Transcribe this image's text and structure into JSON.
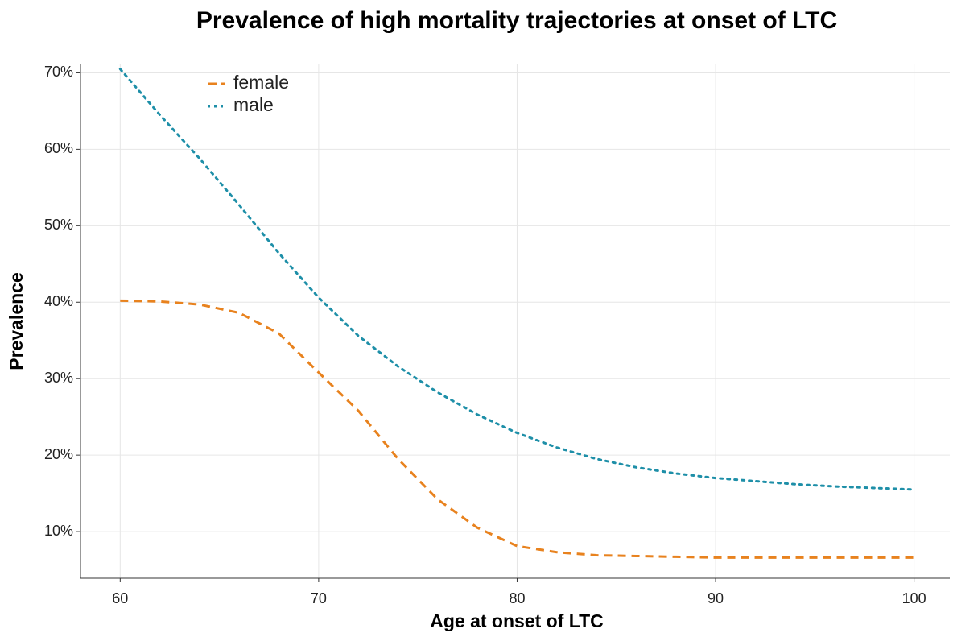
{
  "chart_data": {
    "type": "line",
    "title": "Prevalence of high mortality trajectories at onset of LTC",
    "x_label": "Age at onset of LTC",
    "y_label": "Prevalence",
    "x": [
      60,
      62,
      64,
      66,
      68,
      70,
      72,
      74,
      76,
      78,
      80,
      82,
      84,
      86,
      88,
      90,
      92,
      94,
      96,
      98,
      100
    ],
    "series": [
      {
        "name": "female",
        "color": "#e8821e",
        "style": "dashed",
        "values": [
          40.2,
          40.1,
          39.7,
          38.6,
          35.9,
          30.8,
          25.8,
          19.5,
          14.2,
          10.5,
          8.1,
          7.3,
          6.9,
          6.8,
          6.7,
          6.6,
          6.6,
          6.6,
          6.6,
          6.6,
          6.6
        ]
      },
      {
        "name": "male",
        "color": "#1e8fa8",
        "style": "dotted",
        "values": [
          70.5,
          64.5,
          58.8,
          52.7,
          46.4,
          40.6,
          35.6,
          31.6,
          28.2,
          25.3,
          22.9,
          21.0,
          19.5,
          18.4,
          17.6,
          17.0,
          16.6,
          16.2,
          15.9,
          15.7,
          15.5
        ]
      }
    ],
    "xlim": [
      58,
      101.8
    ],
    "xticks": [
      60,
      70,
      80,
      90,
      100
    ],
    "ylim": [
      3.9,
      71.1
    ],
    "yticks": [
      {
        "value": 10,
        "label": "10%"
      },
      {
        "value": 20,
        "label": "20%"
      },
      {
        "value": 30,
        "label": "30%"
      },
      {
        "value": 40,
        "label": "40%"
      },
      {
        "value": 50,
        "label": "50%"
      },
      {
        "value": 60,
        "label": "60%"
      },
      {
        "value": 70,
        "label": "70%"
      }
    ],
    "grid": true,
    "legend_position": "top-left"
  }
}
